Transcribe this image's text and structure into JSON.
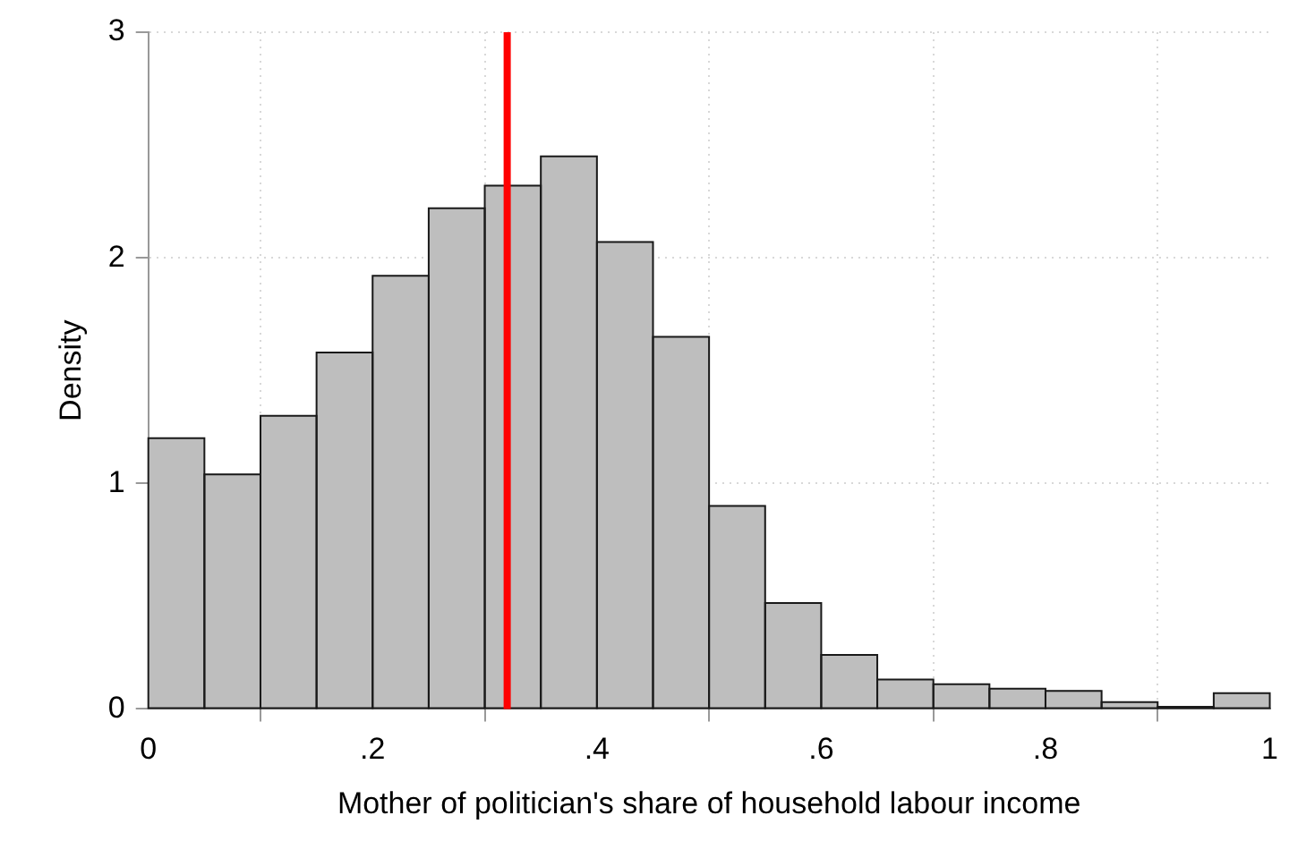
{
  "chart_data": {
    "type": "histogram",
    "xlabel": "Mother of politician's share of household labour income",
    "ylabel": "Density",
    "bins": [
      0,
      0.05,
      0.1,
      0.15,
      0.2,
      0.25,
      0.3,
      0.35,
      0.4,
      0.45,
      0.5,
      0.55,
      0.6,
      0.65,
      0.7,
      0.75,
      0.8,
      0.85,
      0.9,
      0.95,
      1
    ],
    "values": [
      1.2,
      1.04,
      1.3,
      1.58,
      1.92,
      2.22,
      2.32,
      2.45,
      2.07,
      1.65,
      0.9,
      0.47,
      0.24,
      0.13,
      0.11,
      0.09,
      0.08,
      0.03,
      0.01,
      0.07
    ],
    "color": "#bebebe",
    "xlim": [
      0,
      1
    ],
    "xticks": [
      0,
      {
        "value": 0.2,
        "label": ".2"
      },
      {
        "value": 0.4,
        "label": ".4"
      },
      {
        "value": 0.6,
        "label": ".6"
      },
      {
        "value": 0.8,
        "label": ".8"
      },
      1
    ],
    "ylim": [
      0,
      3
    ],
    "yticks": [
      0,
      1,
      2,
      3
    ],
    "grid": true,
    "legend": false,
    "ref_lines": [
      {
        "axis": "x",
        "value": 0.32,
        "color": "#ff0000"
      }
    ]
  }
}
